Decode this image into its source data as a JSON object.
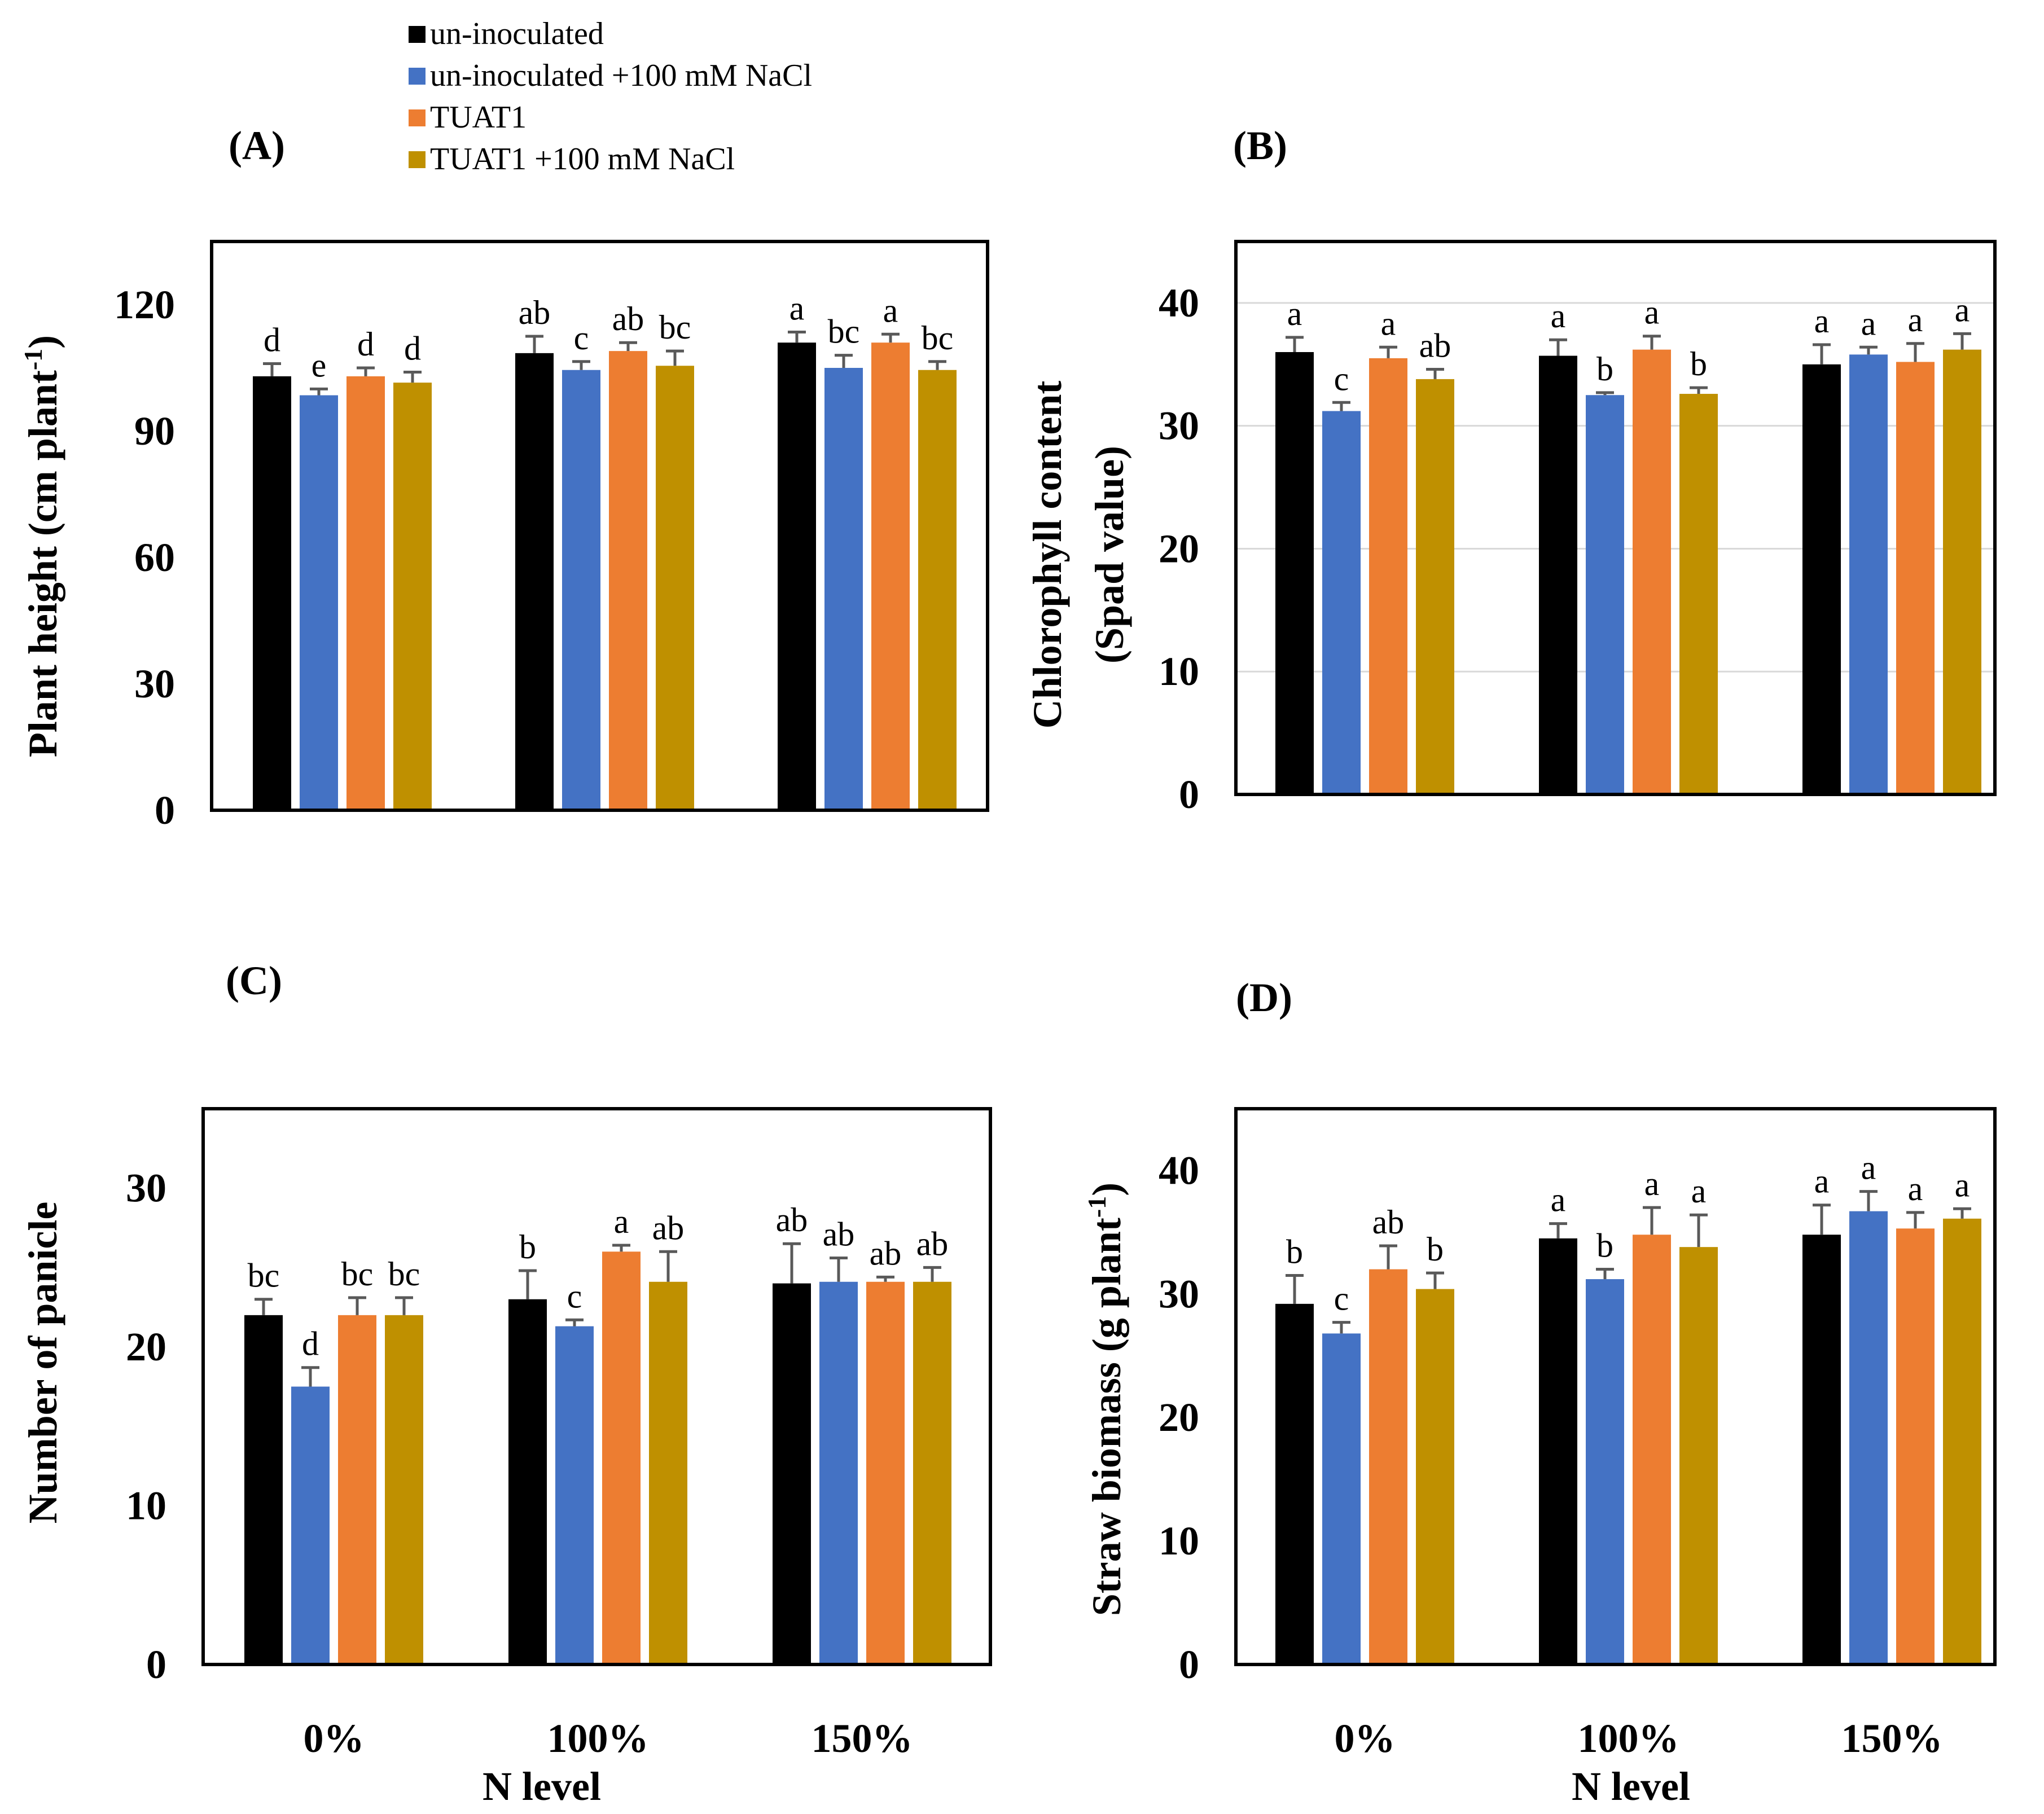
{
  "legend": {
    "items": [
      {
        "label": "un-inoculated",
        "color": "#000000"
      },
      {
        "label": "un-inoculated +100 mM NaCl",
        "color": "#4472C4"
      },
      {
        "label": "TUAT1",
        "color": "#ED7D31"
      },
      {
        "label": "TUAT1 +100 mM NaCl",
        "color": "#BF9000"
      }
    ]
  },
  "xlabel_shared": "N level",
  "chart_data": [
    {
      "type": "bar",
      "panel": "(A)",
      "title": "",
      "ylabel": "Plant height (cm plant",
      "ylabel_superscript": "-1",
      "ylabel_suffix": ")",
      "xlabel": "",
      "ylim": [
        0,
        135
      ],
      "yticks": [
        0,
        30,
        60,
        90,
        120
      ],
      "grid": false,
      "categories": [
        "0%",
        "100%",
        "150%"
      ],
      "show_category_labels": false,
      "series": [
        {
          "name": "un-inoculated",
          "values": [
            103,
            108.5,
            111
          ],
          "errors": [
            3,
            4,
            2.5
          ],
          "letters": [
            "d",
            "ab",
            "a"
          ]
        },
        {
          "name": "un-inoculated +100 mM NaCl",
          "values": [
            98.5,
            104.5,
            105
          ],
          "errors": [
            1.5,
            2,
            3
          ],
          "letters": [
            "e",
            "c",
            "bc"
          ]
        },
        {
          "name": "TUAT1",
          "values": [
            103,
            109,
            111
          ],
          "errors": [
            2,
            2,
            2
          ],
          "letters": [
            "d",
            "ab",
            "a"
          ]
        },
        {
          "name": "TUAT1 +100 mM NaCl",
          "values": [
            101.5,
            105.5,
            104.5
          ],
          "errors": [
            2.5,
            3.5,
            2
          ],
          "letters": [
            "d",
            "bc",
            "bc"
          ]
        }
      ]
    },
    {
      "type": "bar",
      "panel": "(B)",
      "title": "",
      "ylabel": "Chlorophyll  content",
      "ylabel2": "(Spad value)",
      "xlabel": "",
      "ylim": [
        0,
        45
      ],
      "yticks": [
        0,
        10,
        20,
        30,
        40
      ],
      "grid": true,
      "categories": [
        "0%",
        "100%",
        "150%"
      ],
      "show_category_labels": false,
      "series": [
        {
          "name": "un-inoculated",
          "values": [
            36,
            35.7,
            35
          ],
          "errors": [
            1.2,
            1.3,
            1.6
          ],
          "letters": [
            "a",
            "a",
            "a"
          ]
        },
        {
          "name": "un-inoculated +100 mM NaCl",
          "values": [
            31.2,
            32.5,
            35.8
          ],
          "errors": [
            0.7,
            0.2,
            0.6
          ],
          "letters": [
            "c",
            "b",
            "a"
          ]
        },
        {
          "name": "TUAT1",
          "values": [
            35.5,
            36.2,
            35.2
          ],
          "errors": [
            0.9,
            1.1,
            1.5
          ],
          "letters": [
            "a",
            "a",
            "a"
          ]
        },
        {
          "name": "TUAT1 +100 mM NaCl",
          "values": [
            33.8,
            32.6,
            36.2
          ],
          "errors": [
            0.8,
            0.5,
            1.3
          ],
          "letters": [
            "ab",
            "b",
            "a"
          ]
        }
      ]
    },
    {
      "type": "bar",
      "panel": "(C)",
      "title": "",
      "ylabel": "Number of panicle",
      "xlabel": "N level",
      "ylim": [
        0,
        35
      ],
      "yticks": [
        0,
        10,
        20,
        30
      ],
      "grid": false,
      "categories": [
        "0%",
        "100%",
        "150%"
      ],
      "show_category_labels": true,
      "series": [
        {
          "name": "un-inoculated",
          "values": [
            22,
            23,
            24
          ],
          "errors": [
            1,
            1.8,
            2.5
          ],
          "letters": [
            "bc",
            "b",
            "ab"
          ]
        },
        {
          "name": "un-inoculated +100 mM NaCl",
          "values": [
            17.5,
            21.3,
            24.1
          ],
          "errors": [
            1.2,
            0.4,
            1.5
          ],
          "letters": [
            "d",
            "c",
            "ab"
          ]
        },
        {
          "name": "TUAT1",
          "values": [
            22,
            26,
            24.1
          ],
          "errors": [
            1.1,
            0.4,
            0.3
          ],
          "letters": [
            "bc",
            "a",
            "ab"
          ]
        },
        {
          "name": "TUAT1 +100 mM NaCl",
          "values": [
            22,
            24.1,
            24.1
          ],
          "errors": [
            1.1,
            1.9,
            0.9
          ],
          "letters": [
            "bc",
            "ab",
            "ab"
          ]
        }
      ]
    },
    {
      "type": "bar",
      "panel": "(D)",
      "title": "",
      "ylabel": "Straw biomass (g plant",
      "ylabel_superscript": "-1",
      "ylabel_suffix": ")",
      "xlabel": "N level",
      "ylim": [
        0,
        45
      ],
      "yticks": [
        0,
        10,
        20,
        30,
        40
      ],
      "grid": false,
      "categories": [
        "0%",
        "100%",
        "150%"
      ],
      "show_category_labels": true,
      "series": [
        {
          "name": "un-inoculated",
          "values": [
            29.2,
            34.5,
            34.8
          ],
          "errors": [
            2.3,
            1.2,
            2.4
          ],
          "letters": [
            "b",
            "a",
            "a"
          ]
        },
        {
          "name": "un-inoculated +100 mM NaCl",
          "values": [
            26.8,
            31.2,
            36.7
          ],
          "errors": [
            0.9,
            0.8,
            1.6
          ],
          "letters": [
            "c",
            "b",
            "a"
          ]
        },
        {
          "name": "TUAT1",
          "values": [
            32,
            34.8,
            35.3
          ],
          "errors": [
            1.9,
            2.2,
            1.3
          ],
          "letters": [
            "ab",
            "a",
            "a"
          ]
        },
        {
          "name": "TUAT1 +100 mM NaCl",
          "values": [
            30.4,
            33.8,
            36.1
          ],
          "errors": [
            1.3,
            2.6,
            0.8
          ],
          "letters": [
            "b",
            "a",
            "a"
          ]
        }
      ]
    }
  ]
}
